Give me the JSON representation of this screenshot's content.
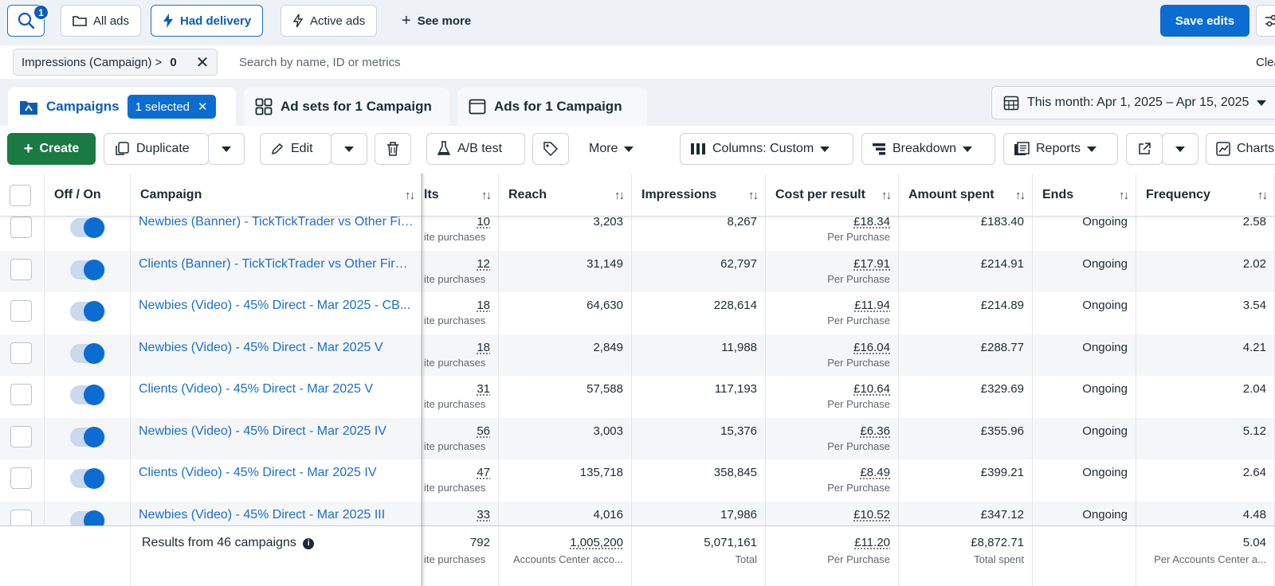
{
  "filters": {
    "search_badge": "1",
    "all_ads": "All ads",
    "had_delivery": "Had delivery",
    "active_ads": "Active ads",
    "see_more": "See more",
    "save_edits": "Save edits"
  },
  "searchbar": {
    "token_label": "Impressions (Campaign) >",
    "token_value": "0",
    "placeholder": "Search by name, ID or metrics",
    "clear": "Clea"
  },
  "tabs": {
    "campaigns": "Campaigns",
    "selected": "1 selected",
    "adsets": "Ad sets for 1 Campaign",
    "ads": "Ads for 1 Campaign",
    "date_range": "This month: Apr 1, 2025 – Apr 15, 2025"
  },
  "toolbar": {
    "create": "Create",
    "duplicate": "Duplicate",
    "edit": "Edit",
    "ab_test": "A/B test",
    "more": "More",
    "columns": "Columns: Custom",
    "breakdown": "Breakdown",
    "reports": "Reports",
    "charts": "Charts"
  },
  "table": {
    "headers": {
      "off_on": "Off / On",
      "campaign": "Campaign",
      "results": "lts",
      "reach": "Reach",
      "impressions": "Impressions",
      "cost_per_result": "Cost per result",
      "amount_spent": "Amount spent",
      "ends": "Ends",
      "frequency": "Frequency"
    },
    "rows": [
      {
        "name": "Newbies (Banner) - TickTickTrader vs Other Fir...",
        "results": "10",
        "results_sub": "ite purchases",
        "reach": "3,203",
        "impressions": "8,267",
        "cpr": "£18.34",
        "cpr_sub": "Per Purchase",
        "spent": "£183.40",
        "ends": "Ongoing",
        "frequency": "2.58"
      },
      {
        "name": "Clients (Banner) - TickTickTrader vs Other Firms...",
        "results": "12",
        "results_sub": "ite purchases",
        "reach": "31,149",
        "impressions": "62,797",
        "cpr": "£17.91",
        "cpr_sub": "Per Purchase",
        "spent": "£214.91",
        "ends": "Ongoing",
        "frequency": "2.02"
      },
      {
        "name": "Newbies (Video) - 45% Direct - Mar 2025 - CB...",
        "results": "18",
        "results_sub": "ite purchases",
        "reach": "64,630",
        "impressions": "228,614",
        "cpr": "£11.94",
        "cpr_sub": "Per Purchase",
        "spent": "£214.89",
        "ends": "Ongoing",
        "frequency": "3.54"
      },
      {
        "name": "Newbies (Video) - 45% Direct - Mar 2025 V",
        "results": "18",
        "results_sub": "ite purchases",
        "reach": "2,849",
        "impressions": "11,988",
        "cpr": "£16.04",
        "cpr_sub": "Per Purchase",
        "spent": "£288.77",
        "ends": "Ongoing",
        "frequency": "4.21"
      },
      {
        "name": "Clients (Video) - 45% Direct - Mar 2025 V",
        "results": "31",
        "results_sub": "ite purchases",
        "reach": "57,588",
        "impressions": "117,193",
        "cpr": "£10.64",
        "cpr_sub": "Per Purchase",
        "spent": "£329.69",
        "ends": "Ongoing",
        "frequency": "2.04"
      },
      {
        "name": "Newbies (Video) - 45% Direct - Mar 2025 IV",
        "results": "56",
        "results_sub": "ite purchases",
        "reach": "3,003",
        "impressions": "15,376",
        "cpr": "£6.36",
        "cpr_sub": "Per Purchase",
        "spent": "£355.96",
        "ends": "Ongoing",
        "frequency": "5.12"
      },
      {
        "name": "Clients (Video) - 45% Direct - Mar 2025 IV",
        "results": "47",
        "results_sub": "ite purchases",
        "reach": "135,718",
        "impressions": "358,845",
        "cpr": "£8.49",
        "cpr_sub": "Per Purchase",
        "spent": "£399.21",
        "ends": "Ongoing",
        "frequency": "2.64"
      },
      {
        "name": "Newbies (Video) - 45% Direct - Mar 2025 III",
        "results": "33",
        "results_sub": "ite purchases",
        "reach": "4,016",
        "impressions": "17,986",
        "cpr": "£10.52",
        "cpr_sub": "Per Purchase",
        "spent": "£347.12",
        "ends": "Ongoing",
        "frequency": "4.48"
      }
    ],
    "footer": {
      "label": "Results from 46 campaigns",
      "results": "792",
      "results_sub": "ite purchases",
      "reach": "1,005,200",
      "reach_sub": "Accounts Center acco...",
      "impressions": "5,071,161",
      "impressions_sub": "Total",
      "cpr": "£11.20",
      "cpr_sub": "Per Purchase",
      "spent": "£8,872.71",
      "spent_sub": "Total spent",
      "frequency": "5.04",
      "frequency_sub": "Per Accounts Center a..."
    }
  },
  "colors": {
    "accent": "#0b6dd1",
    "create": "#1b7a43",
    "link": "#1a6fc7"
  }
}
